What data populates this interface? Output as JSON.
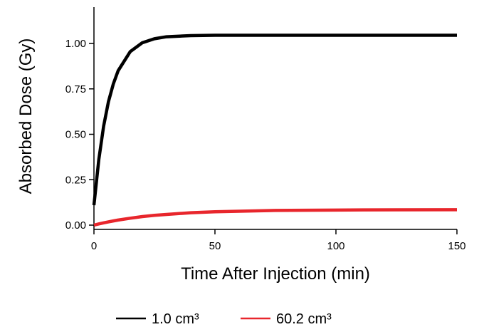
{
  "chart_data": {
    "type": "line",
    "x_label": "Time After Injection (min)",
    "y_label": "Absorbed Dose (Gy)",
    "x": [
      0,
      2,
      4,
      6,
      8,
      10,
      15,
      20,
      25,
      30,
      40,
      50,
      75,
      100,
      125,
      150
    ],
    "series": [
      {
        "name": "1.0 cm³",
        "color": "#000000",
        "values": [
          0.11,
          0.36,
          0.545,
          0.68,
          0.777,
          0.85,
          0.955,
          1.004,
          1.026,
          1.037,
          1.043,
          1.045,
          1.045,
          1.045,
          1.045,
          1.045
        ]
      },
      {
        "name": "60.2 cm³",
        "color": "#e8262c",
        "values": [
          0,
          0.0065,
          0.0126,
          0.018,
          0.023,
          0.028,
          0.038,
          0.047,
          0.054,
          0.059,
          0.068,
          0.0735,
          0.081,
          0.083,
          0.0845,
          0.085
        ]
      }
    ],
    "xlim": [
      0,
      150
    ],
    "xticks": [
      0,
      50,
      100,
      150
    ],
    "ylim": [
      0,
      1.2
    ],
    "yticks": [
      {
        "value": 0,
        "label": "0.00"
      },
      {
        "value": 0.25,
        "label": "0.25"
      },
      {
        "value": 0.5,
        "label": "0.50"
      },
      {
        "value": 0.75,
        "label": "0.75"
      },
      {
        "value": 1,
        "label": "1.00"
      }
    ],
    "legend": "bottom"
  }
}
